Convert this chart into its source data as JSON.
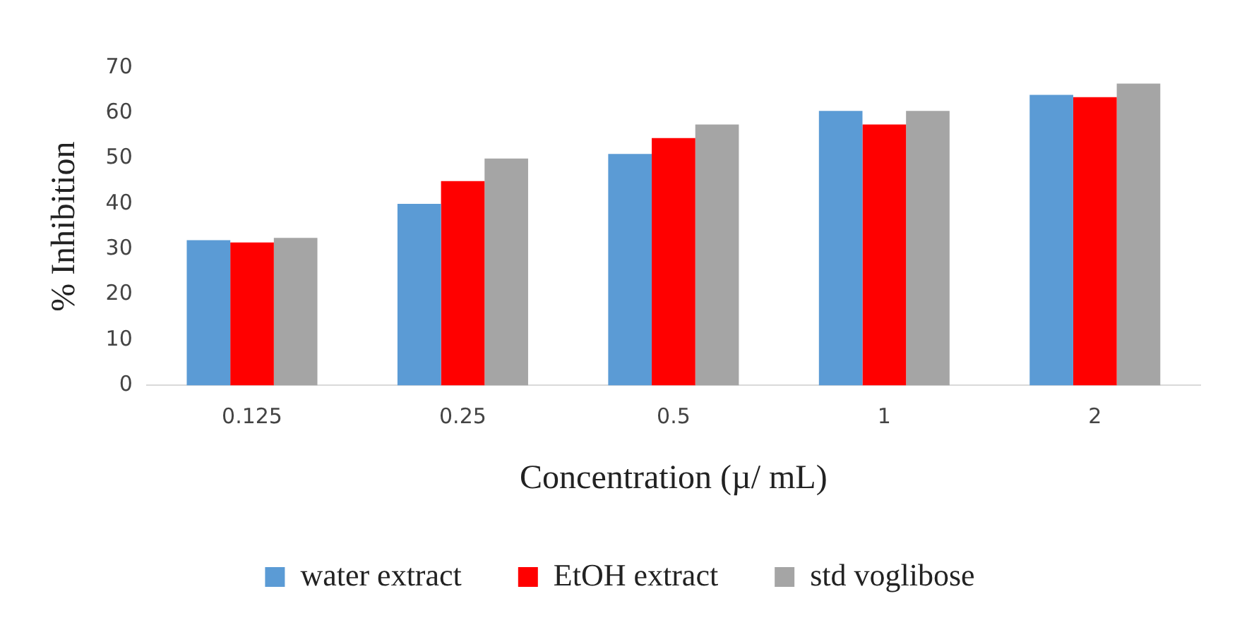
{
  "chart_data": {
    "type": "bar",
    "xlabel": "Concentration (µ/ mL)",
    "ylabel": "% Inhibition",
    "categories": [
      "0.125",
      "0.25",
      "0.5",
      "1",
      "2"
    ],
    "series": [
      {
        "name": "water extract",
        "color": "#5b9bd5",
        "values": [
          32,
          40,
          51,
          60.5,
          64
        ]
      },
      {
        "name": "EtOH extract",
        "color": "#ff0000",
        "values": [
          31.5,
          45,
          54.5,
          57.5,
          63.5
        ]
      },
      {
        "name": "std voglibose",
        "color": "#a5a5a5",
        "values": [
          32.5,
          50,
          57.5,
          60.5,
          66.5
        ]
      }
    ],
    "ylim": [
      0,
      70
    ],
    "yticks": [
      0,
      10,
      20,
      30,
      40,
      50,
      60,
      70
    ],
    "grid": false,
    "legend": "bottom"
  }
}
